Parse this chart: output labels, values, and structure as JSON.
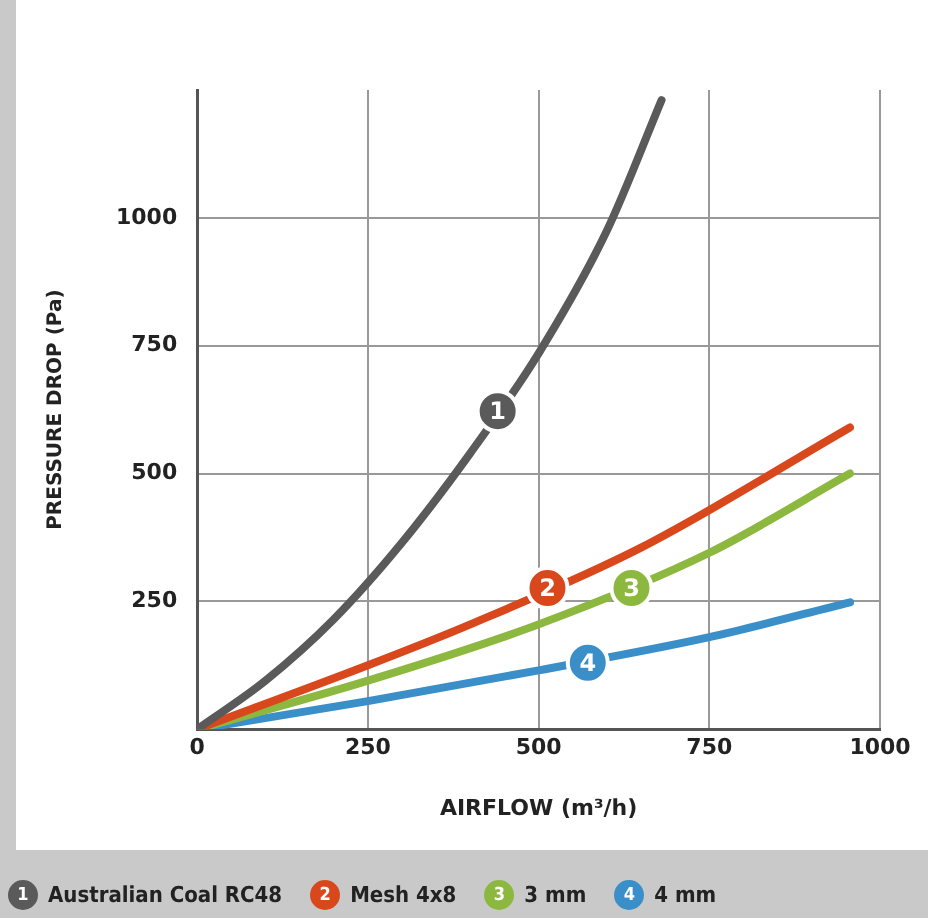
{
  "chart_data": {
    "type": "line",
    "xlabel": "AIRFLOW (m³/h)",
    "ylabel": "PRESSURE DROP (Pa)",
    "xlim": [
      0,
      1000
    ],
    "xticks": [
      0,
      250,
      500,
      750,
      1000
    ],
    "ylim": [
      0,
      1250
    ],
    "yticks": [
      250,
      500,
      750,
      1000
    ],
    "grid": true,
    "legend": "bottom",
    "marker": "none",
    "line_style": "solid",
    "series": [
      {
        "name": "Australian Coal RC48",
        "color": "#5a5a5a",
        "x": [
          0,
          100,
          200,
          300,
          400,
          500,
          600,
          680
        ],
        "values": [
          0,
          95,
          215,
          365,
          540,
          735,
          975,
          1230
        ]
      },
      {
        "name": "Mesh 4x8",
        "color": "#d9481c",
        "x": [
          0,
          250,
          400,
          650,
          956
        ],
        "values": [
          0,
          125,
          205,
          355,
          590
        ]
      },
      {
        "name": "3 mm",
        "color": "#8db83f",
        "x": [
          0,
          250,
          500,
          750,
          956
        ],
        "values": [
          0,
          95,
          205,
          345,
          500
        ]
      },
      {
        "name": "4 mm",
        "color": "#3a8fc8",
        "x": [
          0,
          250,
          500,
          750,
          956
        ],
        "values": [
          0,
          55,
          115,
          180,
          248
        ]
      }
    ],
    "annotations": [
      {
        "text": "1",
        "x": 440,
        "y": 622
      },
      {
        "text": "2",
        "x": 513,
        "y": 276
      },
      {
        "text": "3",
        "x": 636,
        "y": 276
      },
      {
        "text": "4",
        "x": 572,
        "y": 130
      }
    ]
  }
}
